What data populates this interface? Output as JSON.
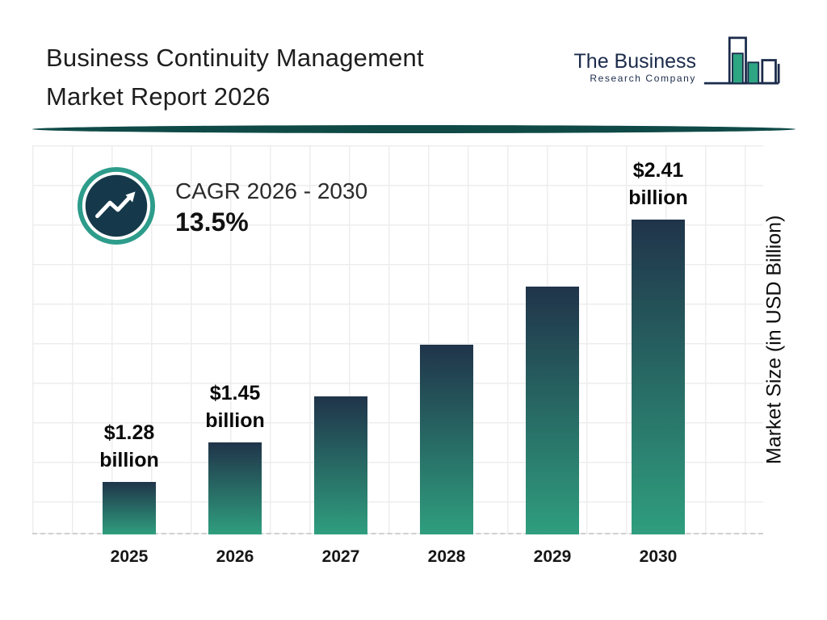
{
  "header": {
    "title_line1": "Business Continuity Management",
    "title_line2": "Market Report 2026"
  },
  "logo": {
    "name_line1": "The Business",
    "name_line2": "Research Company"
  },
  "cagr": {
    "label": "CAGR 2026 - 2030",
    "value": "13.5%"
  },
  "chart_data": {
    "type": "bar",
    "title": "Business Continuity Management Market Report 2026",
    "categories": [
      "2025",
      "2026",
      "2027",
      "2028",
      "2029",
      "2030"
    ],
    "values": [
      1.28,
      1.45,
      1.65,
      1.87,
      2.12,
      2.41
    ],
    "unit": "USD Billion",
    "ylabel": "Market Size (in USD Billion)",
    "cagr": "13.5%",
    "cagr_period": "2026 - 2030",
    "grid": true,
    "ylim": [
      1.0,
      2.6
    ],
    "data_labels": [
      {
        "value_text": "$1.28",
        "unit_text": "billion"
      },
      {
        "value_text": "$1.45",
        "unit_text": "billion"
      },
      null,
      null,
      null,
      {
        "value_text": "$2.41",
        "unit_text": "billion"
      }
    ],
    "bar_gradient": [
      "#20344a",
      "#2f9e7e"
    ]
  },
  "colors": {
    "accent_teal": "#2d9c8b",
    "dark_navy": "#15394a",
    "divider_teal": "#0f4a47",
    "logo_navy": "#1b2b4b",
    "logo_green": "#2ea583"
  }
}
